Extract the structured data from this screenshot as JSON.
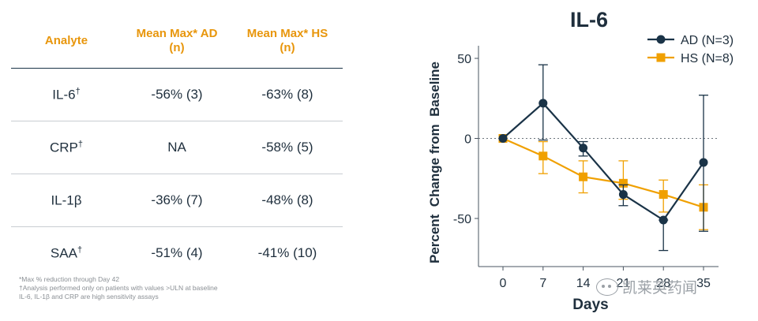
{
  "table": {
    "headers": [
      {
        "line1": "Analyte",
        "line2": ""
      },
      {
        "line1": "Mean Max* AD",
        "line2": "(n)"
      },
      {
        "line1": "Mean Max* HS",
        "line2": "(n)"
      }
    ],
    "rows": [
      {
        "analyte": "IL-6",
        "mark": "†",
        "ad": "-56% (3)",
        "hs": "-63% (8)"
      },
      {
        "analyte": "CRP",
        "mark": "†",
        "ad": "NA",
        "hs": "-58% (5)"
      },
      {
        "analyte": "IL-1β",
        "mark": "",
        "ad": "-36% (7)",
        "hs": "-48% (8)"
      },
      {
        "analyte": "SAA",
        "mark": "†",
        "ad": "-51% (4)",
        "hs": "-41% (10)"
      }
    ]
  },
  "footnotes": [
    "*Max % reduction through Day 42",
    "†Analysis performed only on patients with values >ULN at baseline",
    "IL-6, IL-1β and CRP are high sensitivity assays"
  ],
  "watermark": "凯莱英药闻",
  "colors": {
    "header_orange": "#e8960c",
    "ad_navy": "#1a3347",
    "hs_orange": "#f0a000",
    "text": "#1f2f3d"
  },
  "chart_data": {
    "type": "line",
    "title": "IL-6",
    "xlabel": "Days",
    "ylabel": "Percent  Change from  Baseline",
    "x": [
      0,
      7,
      14,
      21,
      28,
      35
    ],
    "x_tick_labels": [
      "0",
      "7",
      "14",
      "21",
      "28",
      "35"
    ],
    "ylim": [
      -80,
      50
    ],
    "y_ticks": [
      50,
      0,
      -50
    ],
    "reference_line": 0,
    "legend_position": "top-right",
    "series": [
      {
        "name": "AD (N=3)",
        "marker": "circle",
        "color": "#1a3347",
        "values": [
          0,
          22,
          -6,
          -35,
          -51,
          -15
        ],
        "err_low": [
          0,
          23,
          5,
          7,
          19,
          43
        ],
        "err_high": [
          0,
          24,
          4,
          6,
          0,
          42
        ]
      },
      {
        "name": "HS (N=8)",
        "marker": "square",
        "color": "#f0a000",
        "values": [
          0,
          -11,
          -24,
          -28,
          -35,
          -43
        ],
        "err_low": [
          0,
          11,
          10,
          10,
          11,
          14
        ],
        "err_high": [
          0,
          9,
          10,
          14,
          9,
          14
        ]
      }
    ]
  }
}
